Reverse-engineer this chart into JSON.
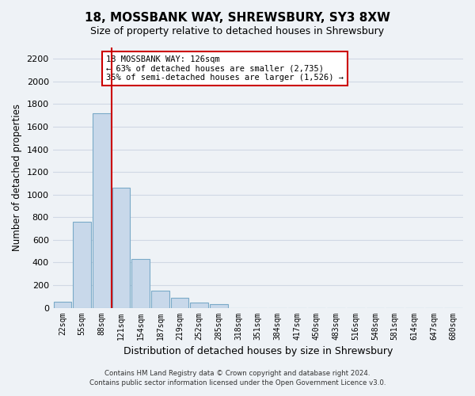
{
  "title": "18, MOSSBANK WAY, SHREWSBURY, SY3 8XW",
  "subtitle": "Size of property relative to detached houses in Shrewsbury",
  "xlabel": "Distribution of detached houses by size in Shrewsbury",
  "ylabel": "Number of detached properties",
  "bar_color": "#c8d8ea",
  "bar_edge_color": "#7aaac8",
  "vline_color": "#cc0000",
  "vline_x_index": 3,
  "bins": [
    "22sqm",
    "55sqm",
    "88sqm",
    "121sqm",
    "154sqm",
    "187sqm",
    "219sqm",
    "252sqm",
    "285sqm",
    "318sqm",
    "351sqm",
    "384sqm",
    "417sqm",
    "450sqm",
    "483sqm",
    "516sqm",
    "548sqm",
    "581sqm",
    "614sqm",
    "647sqm",
    "680sqm"
  ],
  "values": [
    55,
    760,
    1720,
    1060,
    430,
    150,
    85,
    45,
    30,
    0,
    0,
    0,
    0,
    0,
    0,
    0,
    0,
    0,
    0,
    0,
    0
  ],
  "ylim": [
    0,
    2300
  ],
  "yticks": [
    0,
    200,
    400,
    600,
    800,
    1000,
    1200,
    1400,
    1600,
    1800,
    2000,
    2200
  ],
  "annotation_title": "18 MOSSBANK WAY: 126sqm",
  "annotation_line1": "← 63% of detached houses are smaller (2,735)",
  "annotation_line2": "35% of semi-detached houses are larger (1,526) →",
  "footnote1": "Contains HM Land Registry data © Crown copyright and database right 2024.",
  "footnote2": "Contains public sector information licensed under the Open Government Licence v3.0.",
  "grid_color": "#d0d8e4",
  "background_color": "#eef2f6"
}
